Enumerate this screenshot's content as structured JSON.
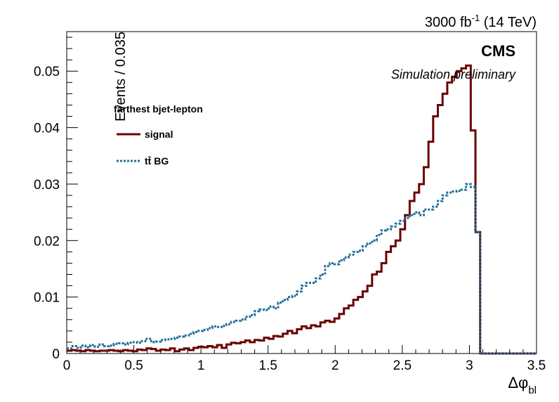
{
  "header": {
    "lumi_prefix": "3000 fb",
    "lumi_exp": "-1",
    "lumi_suffix": " (14 TeV)",
    "experiment": "CMS",
    "status": "Simulation preliminary"
  },
  "legend": {
    "title": "farthest bjet-lepton",
    "entries": [
      {
        "label": "signal",
        "color": "#6b0000",
        "style": "solid"
      },
      {
        "label": "tt̄ BG",
        "color": "#1f6f97",
        "style": "dotted"
      }
    ]
  },
  "chart_data": {
    "type": "line",
    "step": true,
    "xlabel": "Δφ",
    "xlabel_sub": "bl",
    "ylabel": "Events / 0.035",
    "xlim": [
      0,
      3.5
    ],
    "ylim": [
      0,
      0.057
    ],
    "xticks": [
      "0",
      "0.5",
      "1",
      "1.5",
      "2",
      "2.5",
      "3",
      "3.5"
    ],
    "yticks": [
      "0",
      "0.01",
      "0.02",
      "0.03",
      "0.04",
      "0.05"
    ],
    "bin_width": 0.035,
    "series": [
      {
        "name": "signal",
        "color": "#6b0000",
        "style": "solid",
        "values": [
          0.0005,
          0.0006,
          0.0005,
          0.0004,
          0.0006,
          0.0005,
          0.0004,
          0.0005,
          0.0005,
          0.0006,
          0.0005,
          0.0004,
          0.0006,
          0.0005,
          0.0004,
          0.0007,
          0.0006,
          0.0009,
          0.0008,
          0.0005,
          0.0007,
          0.0006,
          0.0009,
          0.0004,
          0.0007,
          0.0009,
          0.0006,
          0.001,
          0.0012,
          0.0011,
          0.0013,
          0.0011,
          0.0015,
          0.001,
          0.0016,
          0.0019,
          0.0018,
          0.002,
          0.0023,
          0.002,
          0.0024,
          0.0023,
          0.0028,
          0.0026,
          0.0031,
          0.003,
          0.0035,
          0.004,
          0.0036,
          0.0043,
          0.0048,
          0.0045,
          0.005,
          0.0048,
          0.0055,
          0.0058,
          0.0056,
          0.0062,
          0.007,
          0.008,
          0.0085,
          0.0095,
          0.01,
          0.011,
          0.012,
          0.014,
          0.0145,
          0.016,
          0.018,
          0.019,
          0.02,
          0.022,
          0.0245,
          0.027,
          0.0285,
          0.03,
          0.033,
          0.0375,
          0.042,
          0.044,
          0.046,
          0.048,
          0.049,
          0.05,
          0.0505,
          0.051,
          0.0395,
          0.0215,
          0.0,
          0.0,
          0.0,
          0.0,
          0.0,
          0.0,
          0.0,
          0.0,
          0.0,
          0.0,
          0.0,
          0.0
        ]
      },
      {
        "name": "tt̄ BG",
        "color": "#1f6f97",
        "style": "dotted",
        "values": [
          0.0009,
          0.0013,
          0.001,
          0.0014,
          0.0011,
          0.0015,
          0.0012,
          0.0016,
          0.0013,
          0.0014,
          0.0017,
          0.0018,
          0.0016,
          0.0019,
          0.002,
          0.0019,
          0.0022,
          0.0026,
          0.002,
          0.0021,
          0.0024,
          0.0025,
          0.0026,
          0.0028,
          0.003,
          0.0032,
          0.0035,
          0.0038,
          0.004,
          0.0042,
          0.0045,
          0.0048,
          0.0047,
          0.0049,
          0.0052,
          0.0056,
          0.0058,
          0.006,
          0.0065,
          0.0068,
          0.0075,
          0.0078,
          0.0077,
          0.0083,
          0.008,
          0.009,
          0.0095,
          0.01,
          0.0102,
          0.011,
          0.012,
          0.0125,
          0.0125,
          0.0133,
          0.014,
          0.0155,
          0.016,
          0.0158,
          0.0165,
          0.017,
          0.0175,
          0.018,
          0.0182,
          0.019,
          0.0195,
          0.02,
          0.021,
          0.0218,
          0.022,
          0.0225,
          0.023,
          0.0235,
          0.024,
          0.0245,
          0.025,
          0.0245,
          0.0255,
          0.0255,
          0.026,
          0.027,
          0.028,
          0.0285,
          0.0287,
          0.0288,
          0.029,
          0.03,
          0.0295,
          0.0215,
          0.0,
          0.0,
          0.0,
          0.0,
          0.0,
          0.0,
          0.0,
          0.0,
          0.0,
          0.0,
          0.0,
          0.0
        ]
      }
    ]
  }
}
